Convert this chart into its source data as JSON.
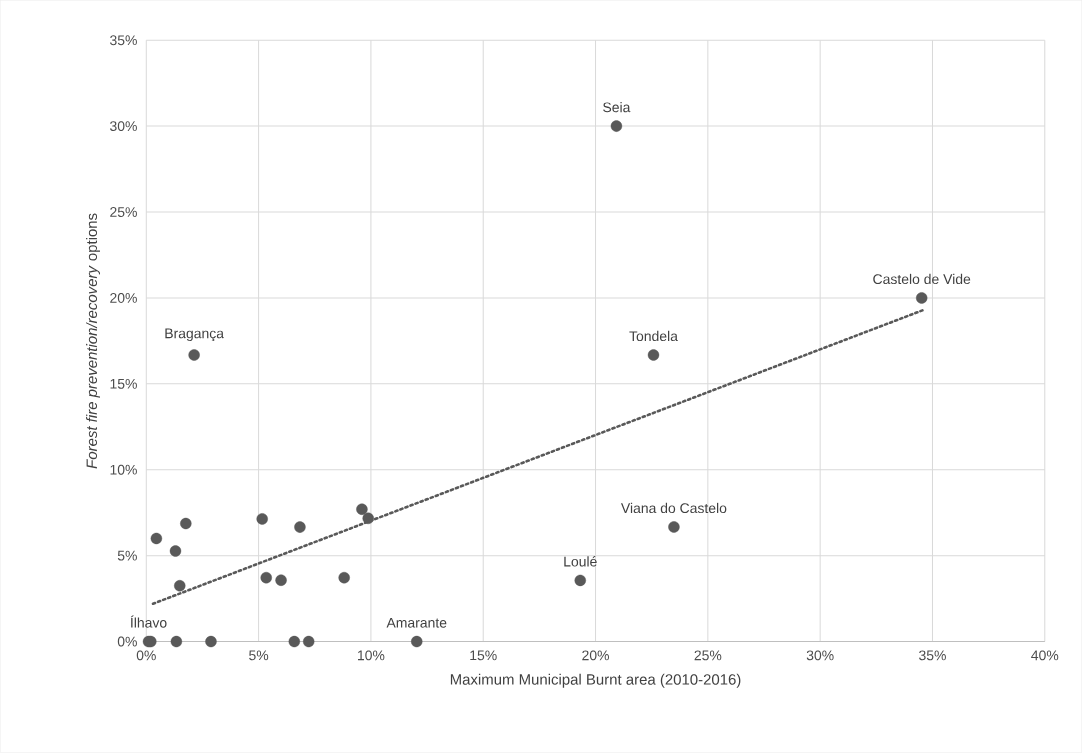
{
  "chart_data": {
    "type": "scatter",
    "xlabel": "Maximum Municipal Burnt area (2010-2016)",
    "ylabel": "*Forest fire prevention/recovery* options",
    "series": [
      {
        "color": "#595959",
        "marker": "circle",
        "x": [
          0.1,
          0.2,
          1.34,
          2.88,
          6.59,
          7.23,
          12.04,
          0.45,
          1.3,
          1.49,
          1.76,
          5.16,
          5.34,
          6.0,
          6.84,
          8.81,
          9.6,
          9.88,
          20.93,
          34.52,
          22.58,
          23.49,
          19.32,
          2.13
        ],
        "values": [
          0,
          0,
          0,
          0,
          0,
          0,
          0,
          6.0,
          5.27,
          3.25,
          6.87,
          7.14,
          3.72,
          3.57,
          6.66,
          3.72,
          7.7,
          7.17,
          30.0,
          20.0,
          16.68,
          6.67,
          3.56,
          16.68
        ]
      },
      {
        "type": "line",
        "color": "#595959",
        "marker": "none",
        "line_style": "dotted",
        "x": [
          0.3,
          34.6
        ],
        "values": [
          2.2,
          19.3
        ]
      }
    ],
    "annotations": [
      {
        "text": "Seia",
        "x": 20.93,
        "y": 30.0
      },
      {
        "text": "Castelo de Vide",
        "x": 34.52,
        "y": 20.0
      },
      {
        "text": "Tondela",
        "x": 22.58,
        "y": 16.68
      },
      {
        "text": "Bragança",
        "x": 2.13,
        "y": 16.68
      },
      {
        "text": "Viana do Castelo",
        "x": 23.49,
        "y": 6.67
      },
      {
        "text": "Loulé",
        "x": 19.32,
        "y": 3.56
      },
      {
        "text": "Amarante",
        "x": 12.04,
        "y": 0
      },
      {
        "text": "Ílhavo",
        "x": 0.1,
        "y": 0
      }
    ],
    "xlim": [
      0,
      40
    ],
    "ylim": [
      0,
      35
    ],
    "xticks": [
      {
        "value": 0,
        "label": "0%"
      },
      {
        "value": 5,
        "label": "5%"
      },
      {
        "value": 10,
        "label": "10%"
      },
      {
        "value": 15,
        "label": "15%"
      },
      {
        "value": 20,
        "label": "20%"
      },
      {
        "value": 25,
        "label": "25%"
      },
      {
        "value": 30,
        "label": "30%"
      },
      {
        "value": 35,
        "label": "35%"
      },
      {
        "value": 40,
        "label": "40%"
      }
    ],
    "yticks": [
      {
        "value": 0,
        "label": "0%"
      },
      {
        "value": 5,
        "label": "5%"
      },
      {
        "value": 10,
        "label": "10%"
      },
      {
        "value": 15,
        "label": "15%"
      },
      {
        "value": 20,
        "label": "20%"
      },
      {
        "value": 25,
        "label": "25%"
      },
      {
        "value": 30,
        "label": "30%"
      },
      {
        "value": 35,
        "label": "35%"
      }
    ],
    "grid": true
  }
}
